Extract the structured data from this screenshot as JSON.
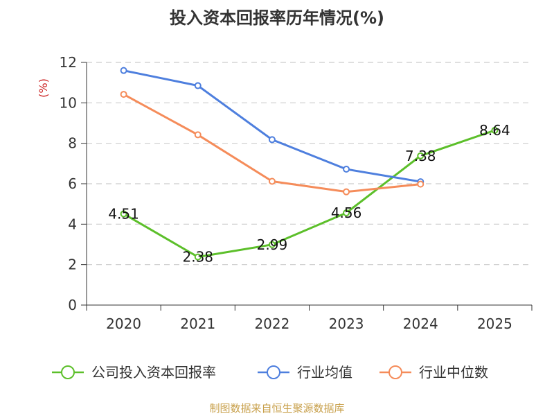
{
  "chart_data": {
    "type": "line",
    "title": "投入资本回报率历年情况(%)",
    "ylabel": "(%)",
    "xlabel": "",
    "categories": [
      "2020",
      "2021",
      "2022",
      "2023",
      "2024",
      "2025"
    ],
    "ylim": [
      0,
      12
    ],
    "yticks": [
      0,
      2,
      4,
      6,
      8,
      10,
      12
    ],
    "grid": true,
    "legend_position": "bottom",
    "series": [
      {
        "name": "公司投入资本回报率",
        "color": "#5cbf2a",
        "values": [
          4.51,
          2.38,
          2.99,
          4.56,
          7.38,
          8.64
        ],
        "labels": [
          "4.51",
          "2.38",
          "2.99",
          "4.56",
          "7.38",
          "8.64"
        ]
      },
      {
        "name": "行业均值",
        "color": "#4e7fde",
        "values": [
          11.6,
          10.85,
          8.18,
          6.72,
          6.1,
          null
        ]
      },
      {
        "name": "行业中位数",
        "color": "#f58c5a",
        "values": [
          10.42,
          8.42,
          6.12,
          5.6,
          5.98,
          null
        ]
      }
    ]
  },
  "source": "制图数据来自恒生聚源数据库"
}
